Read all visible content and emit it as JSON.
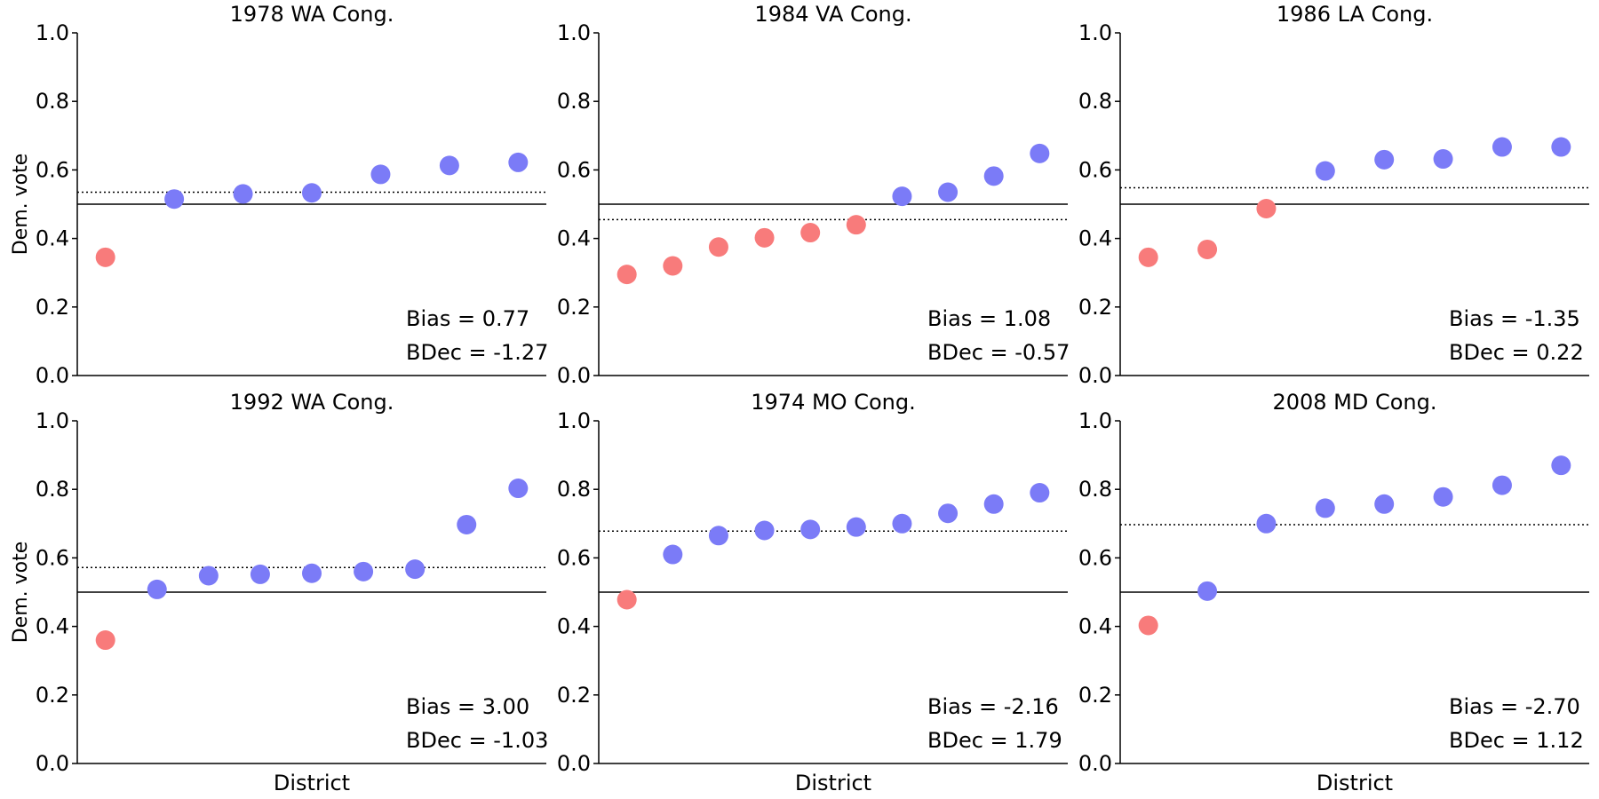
{
  "colors": {
    "dem": "#7b7bf7",
    "rep": "#f87b7b",
    "axis": "#000000"
  },
  "chart_data": [
    {
      "type": "scatter",
      "title": "1978 WA Cong.",
      "xlabel": "",
      "ylabel": "Dem. vote",
      "ylim": [
        0,
        1
      ],
      "yticks": [
        "0.0",
        "0.2",
        "0.4",
        "0.6",
        "0.8",
        "1.0"
      ],
      "values": [
        0.345,
        0.515,
        0.53,
        0.533,
        0.587,
        0.613,
        0.622
      ],
      "mean": 0.535,
      "bias_label": "Bias = 0.77",
      "bdec_label": "BDec = -1.27"
    },
    {
      "type": "scatter",
      "title": "1984 VA Cong.",
      "xlabel": "",
      "ylabel": "",
      "ylim": [
        0,
        1
      ],
      "yticks": [
        "0.0",
        "0.2",
        "0.4",
        "0.6",
        "0.8",
        "1.0"
      ],
      "values": [
        0.295,
        0.32,
        0.375,
        0.402,
        0.417,
        0.44,
        0.523,
        0.535,
        0.582,
        0.648
      ],
      "mean": 0.455,
      "bias_label": "Bias = 1.08",
      "bdec_label": "BDec = -0.57"
    },
    {
      "type": "scatter",
      "title": "1986 LA Cong.",
      "xlabel": "",
      "ylabel": "",
      "ylim": [
        0,
        1
      ],
      "yticks": [
        "0.0",
        "0.2",
        "0.4",
        "0.6",
        "0.8",
        "1.0"
      ],
      "values": [
        0.345,
        0.368,
        0.487,
        0.597,
        0.63,
        0.632,
        0.667,
        0.667
      ],
      "mean": 0.548,
      "bias_label": "Bias = -1.35",
      "bdec_label": "BDec = 0.22"
    },
    {
      "type": "scatter",
      "title": "1992 WA Cong.",
      "xlabel": "District",
      "ylabel": "Dem. vote",
      "ylim": [
        0,
        1
      ],
      "yticks": [
        "0.0",
        "0.2",
        "0.4",
        "0.6",
        "0.8",
        "1.0"
      ],
      "values": [
        0.36,
        0.508,
        0.548,
        0.552,
        0.555,
        0.56,
        0.567,
        0.697,
        0.803
      ],
      "mean": 0.572,
      "bias_label": "Bias = 3.00",
      "bdec_label": "BDec = -1.03"
    },
    {
      "type": "scatter",
      "title": "1974 MO Cong.",
      "xlabel": "District",
      "ylabel": "",
      "ylim": [
        0,
        1
      ],
      "yticks": [
        "0.0",
        "0.2",
        "0.4",
        "0.6",
        "0.8",
        "1.0"
      ],
      "values": [
        0.478,
        0.61,
        0.665,
        0.68,
        0.683,
        0.69,
        0.7,
        0.73,
        0.757,
        0.79
      ],
      "mean": 0.678,
      "bias_label": "Bias = -2.16",
      "bdec_label": "BDec = 1.79"
    },
    {
      "type": "scatter",
      "title": "2008 MD Cong.",
      "xlabel": "District",
      "ylabel": "",
      "ylim": [
        0,
        1
      ],
      "yticks": [
        "0.0",
        "0.2",
        "0.4",
        "0.6",
        "0.8",
        "1.0"
      ],
      "values": [
        0.403,
        0.503,
        0.7,
        0.745,
        0.757,
        0.778,
        0.812,
        0.87
      ],
      "mean": 0.697,
      "bias_label": "Bias = -2.70",
      "bdec_label": "BDec = 1.12"
    }
  ]
}
